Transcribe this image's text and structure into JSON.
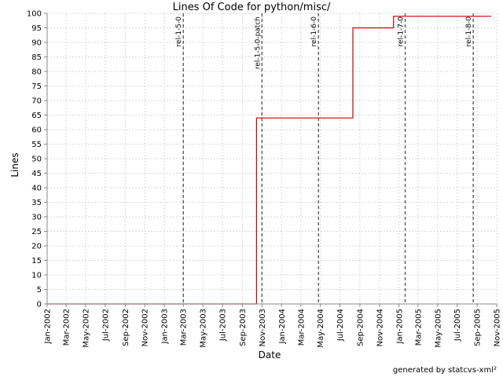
{
  "chart_data": {
    "type": "line",
    "title": "Lines Of Code for python/misc/",
    "xlabel": "Date",
    "ylabel": "Lines",
    "ylim": [
      0,
      100
    ],
    "xlim": [
      "2002-01-01",
      "2005-11-01"
    ],
    "grid": true,
    "step": true,
    "line_color": "#cc0000",
    "marker_color": "#666666",
    "y_ticks": [
      0,
      5,
      10,
      15,
      20,
      25,
      30,
      35,
      40,
      45,
      50,
      55,
      60,
      65,
      70,
      75,
      80,
      85,
      90,
      95,
      100
    ],
    "x_ticks": [
      {
        "date": "2002-01-01",
        "label": "Jan-2002"
      },
      {
        "date": "2002-03-01",
        "label": "Mar-2002"
      },
      {
        "date": "2002-05-01",
        "label": "May-2002"
      },
      {
        "date": "2002-07-01",
        "label": "Jul-2002"
      },
      {
        "date": "2002-09-01",
        "label": "Sep-2002"
      },
      {
        "date": "2002-11-01",
        "label": "Nov-2002"
      },
      {
        "date": "2003-01-01",
        "label": "Jan-2003"
      },
      {
        "date": "2003-03-01",
        "label": "Mar-2003"
      },
      {
        "date": "2003-05-01",
        "label": "May-2003"
      },
      {
        "date": "2003-07-01",
        "label": "Jul-2003"
      },
      {
        "date": "2003-09-01",
        "label": "Sep-2003"
      },
      {
        "date": "2003-11-01",
        "label": "Nov-2003"
      },
      {
        "date": "2004-01-01",
        "label": "Jan-2004"
      },
      {
        "date": "2004-03-01",
        "label": "Mar-2004"
      },
      {
        "date": "2004-05-01",
        "label": "May-2004"
      },
      {
        "date": "2004-07-01",
        "label": "Jul-2004"
      },
      {
        "date": "2004-09-01",
        "label": "Sep-2004"
      },
      {
        "date": "2004-11-01",
        "label": "Nov-2004"
      },
      {
        "date": "2005-01-01",
        "label": "Jan-2005"
      },
      {
        "date": "2005-03-01",
        "label": "Mar-2005"
      },
      {
        "date": "2005-05-01",
        "label": "May-2005"
      },
      {
        "date": "2005-07-01",
        "label": "Jul-2005"
      },
      {
        "date": "2005-09-01",
        "label": "Sep-2005"
      },
      {
        "date": "2005-11-01",
        "label": "Nov-2005"
      }
    ],
    "series": [
      {
        "points": [
          {
            "x": "2002-01-01",
            "y": 0
          },
          {
            "x": "2003-10-15",
            "y": 0
          },
          {
            "x": "2003-10-15",
            "y": 64
          },
          {
            "x": "2004-08-10",
            "y": 64
          },
          {
            "x": "2004-08-10",
            "y": 95
          },
          {
            "x": "2004-12-15",
            "y": 95
          },
          {
            "x": "2004-12-15",
            "y": 99
          },
          {
            "x": "2005-10-15",
            "y": 99
          }
        ]
      }
    ],
    "markers": [
      {
        "date": "2003-03-01",
        "label": "rel-1-5-0"
      },
      {
        "date": "2003-11-01",
        "label": "rel-1-5-0-patch"
      },
      {
        "date": "2004-04-25",
        "label": "rel-1-6-0"
      },
      {
        "date": "2005-01-20",
        "label": "rel-1-7-0"
      },
      {
        "date": "2005-08-20",
        "label": "rel-1-8-0"
      }
    ]
  },
  "footer": "generated by statcvs-xml²"
}
